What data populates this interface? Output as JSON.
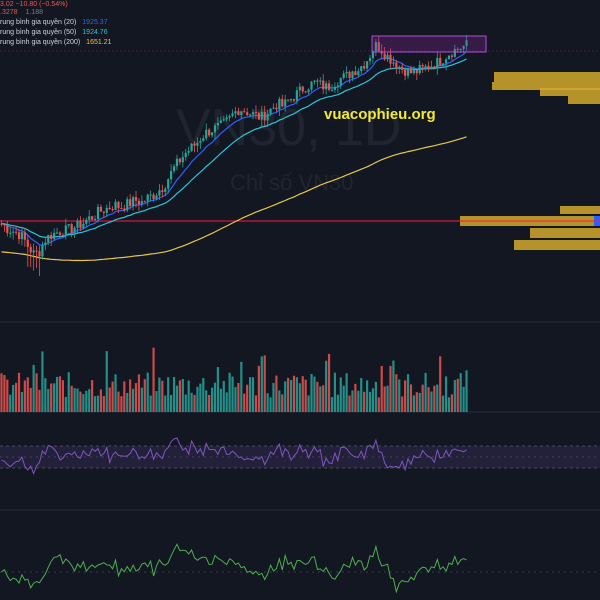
{
  "header": {
    "price_change": "3.02  −10.80 (−0.54%)",
    "price_code": ".3278",
    "price_extra": "1.188"
  },
  "legend": [
    {
      "label": "rung bình gia quyền (20)",
      "value": "1925.37",
      "color": "#2962ff"
    },
    {
      "label": "rung bình gia quyền (50)",
      "value": "1924.76",
      "color": "#26c6da"
    },
    {
      "label": "rung bình gia quyền (200)",
      "value": "1651.21",
      "color": "#e6c74c"
    }
  ],
  "watermark": {
    "symbol": "VN30, 1D",
    "name": "Chỉ số VN30"
  },
  "site_label": "vuacophieu.org",
  "colors": {
    "background": "#131722",
    "up": "#26a69a",
    "down": "#ef5350",
    "ma20": "#2962ff",
    "ma50": "#26c6da",
    "ma200": "#e6c74c",
    "volume_profile": "#d4a82b",
    "rsi": "#7e57c2",
    "oscillator": "#4caf50",
    "horizontal_line": "#ff1744",
    "box": "#9c27b0"
  },
  "chart_data": {
    "type": "candlestick",
    "panes": [
      "price",
      "volume",
      "rsi",
      "oscillator"
    ],
    "close_series_shape": [
      24,
      22,
      21,
      20,
      18,
      14,
      11,
      12,
      17,
      19,
      20,
      21,
      21,
      22,
      23,
      24,
      26,
      27,
      29,
      30,
      31,
      32,
      31,
      32,
      33,
      34,
      33,
      35,
      36,
      38,
      40,
      44,
      48,
      51,
      54,
      56,
      58,
      61,
      63,
      64,
      65,
      66,
      68,
      71,
      73,
      72,
      71,
      70,
      69,
      71,
      73,
      75,
      74,
      76,
      78,
      80,
      82,
      83,
      84,
      83,
      82,
      83,
      85,
      86,
      87,
      89,
      90,
      92,
      95,
      100,
      99,
      96,
      94,
      92,
      90,
      89,
      88,
      89,
      90,
      91,
      92,
      93,
      95,
      97,
      98,
      99,
      100
    ],
    "ma_labels": [
      "MA20",
      "MA50",
      "MA200"
    ],
    "volume_profile": "right side",
    "grid": false
  }
}
